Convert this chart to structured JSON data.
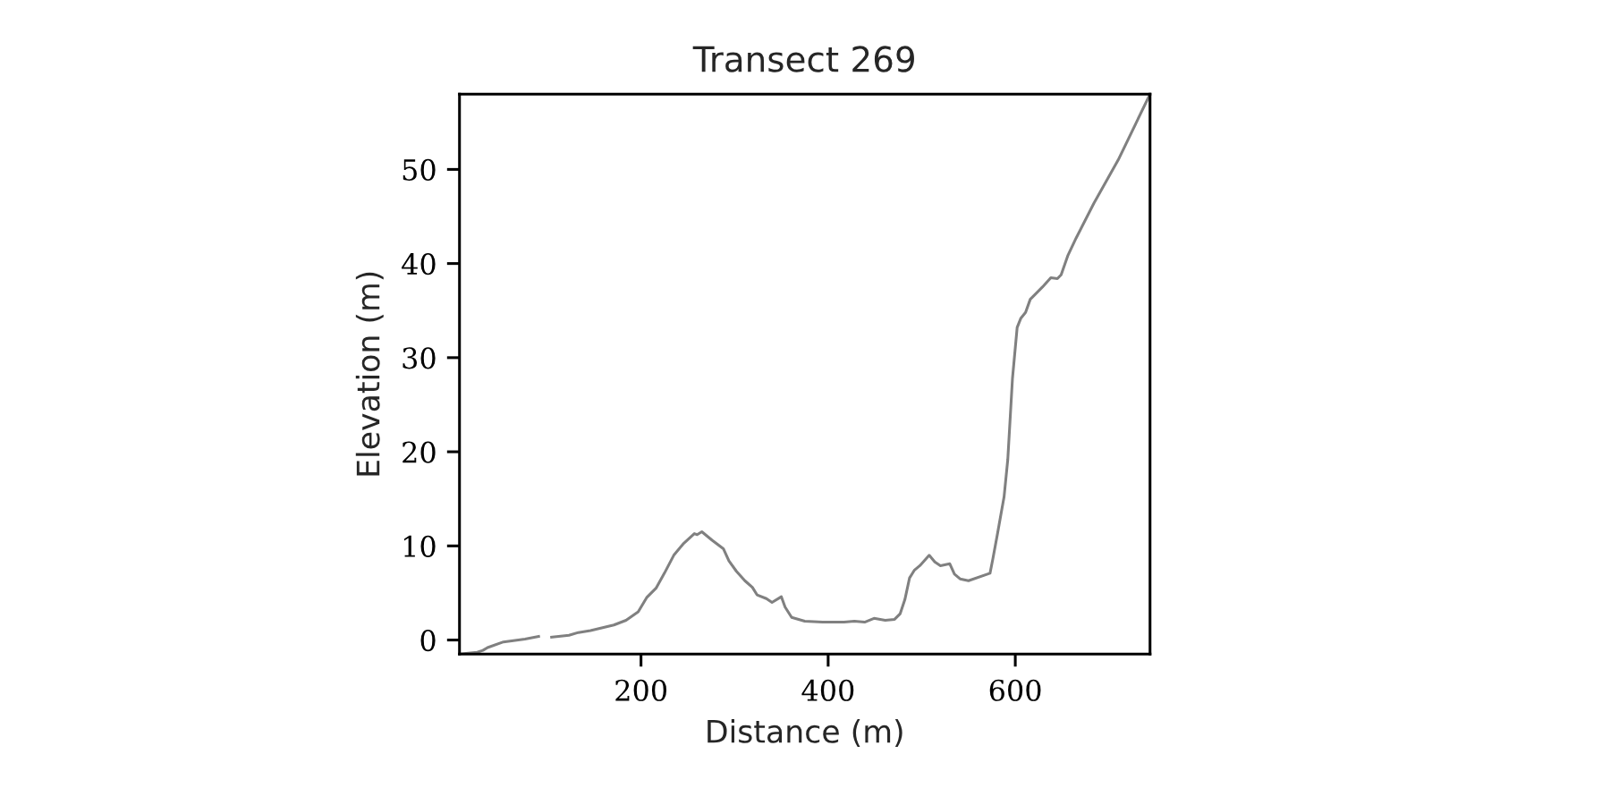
{
  "chart_data": {
    "type": "line",
    "title": "Transect 269",
    "xlabel": "Distance (m)",
    "ylabel": "Elevation (m)",
    "xlim": [
      6,
      744
    ],
    "ylim": [
      -1.5,
      58
    ],
    "xticks": [
      200,
      400,
      600
    ],
    "yticks": [
      0,
      10,
      20,
      30,
      40,
      50
    ],
    "series": [
      {
        "color": "#808080",
        "x": [
          6,
          25,
          31,
          36,
          53,
          76,
          92,
          97,
          103,
          123,
          133,
          146,
          171,
          184,
          197,
          206,
          216,
          225,
          235,
          245,
          257,
          260,
          265,
          276,
          288,
          294,
          302,
          311,
          319,
          324,
          334,
          340,
          350,
          354,
          361,
          375,
          394,
          417,
          428,
          439,
          449,
          461,
          471,
          477,
          482,
          487,
          492,
          498,
          508,
          514,
          520,
          530,
          535,
          541,
          550,
          573,
          576,
          581,
          588,
          592,
          597,
          602,
          606,
          611,
          616,
          621,
          629,
          638,
          645,
          649,
          656,
          665,
          684,
          710,
          744
        ],
        "values": [
          -1.5,
          -1.3,
          -1.1,
          -0.8,
          -0.2,
          0.1,
          0.4,
          null,
          0.3,
          0.5,
          0.8,
          1.0,
          1.6,
          2.1,
          3.0,
          4.5,
          5.5,
          7.1,
          9.0,
          10.2,
          11.3,
          11.2,
          11.5,
          10.6,
          9.7,
          8.4,
          7.3,
          6.3,
          5.6,
          4.8,
          4.4,
          4.0,
          4.6,
          3.5,
          2.4,
          2.0,
          1.9,
          1.9,
          2.0,
          1.9,
          2.3,
          2.1,
          2.2,
          2.8,
          4.3,
          6.6,
          7.4,
          7.9,
          9.0,
          8.3,
          7.9,
          8.1,
          7.0,
          6.5,
          6.3,
          7.1,
          8.6,
          11.3,
          15.2,
          19.2,
          27.8,
          33.2,
          34.2,
          34.8,
          36.2,
          36.7,
          37.5,
          38.5,
          38.4,
          38.8,
          40.8,
          42.7,
          46.4,
          51.0,
          58
        ]
      }
    ]
  }
}
